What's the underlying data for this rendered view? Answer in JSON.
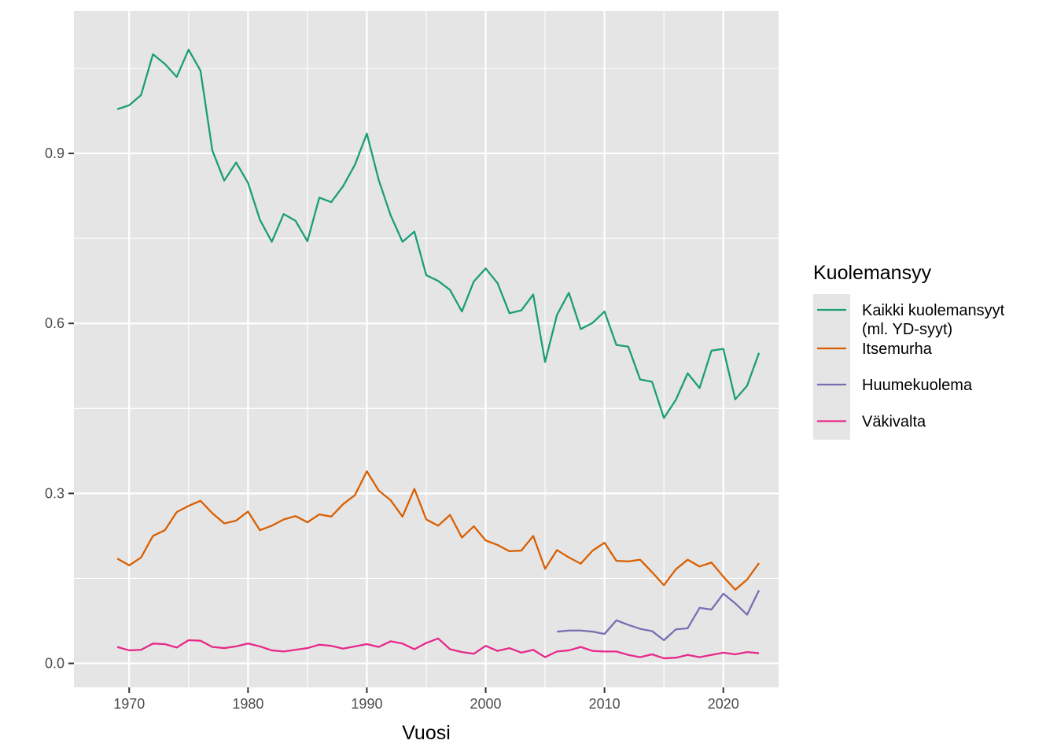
{
  "chart_data": {
    "type": "line",
    "xlabel": "Vuosi",
    "ylabel": "",
    "xlim": [
      1965.35,
      2024.65
    ],
    "ylim": [
      -0.0423,
      1.1513
    ],
    "x_ticks": [
      1970,
      1980,
      1990,
      2000,
      2010,
      2020
    ],
    "y_ticks": [
      0.0,
      0.3,
      0.6,
      0.9
    ],
    "y_tick_labels": [
      "0.0",
      "0.3",
      "0.6",
      "0.9"
    ],
    "grid": true,
    "panel_background": "#e5e5e5",
    "legend": {
      "title": "Kuolemansyy",
      "placement": "right",
      "background": "#e5e5e5"
    },
    "series": [
      {
        "name": "Kaikki kuolemansyyt\n(ml. YD-syyt)",
        "label_lines": [
          "Kaikki kuolemansyyt",
          "(ml. YD-syyt)"
        ],
        "color": "#1b9e77",
        "x": [
          1969,
          1970,
          1971,
          1972,
          1973,
          1974,
          1975,
          1976,
          1977,
          1978,
          1979,
          1980,
          1981,
          1982,
          1983,
          1984,
          1985,
          1986,
          1987,
          1988,
          1989,
          1990,
          1991,
          1992,
          1993,
          1994,
          1995,
          1996,
          1997,
          1998,
          1999,
          2000,
          2001,
          2002,
          2003,
          2004,
          2005,
          2006,
          2007,
          2008,
          2009,
          2010,
          2011,
          2012,
          2013,
          2014,
          2015,
          2016,
          2017,
          2018,
          2019,
          2020,
          2021,
          2022,
          2023
        ],
        "values": [
          0.978,
          0.985,
          1.003,
          1.075,
          1.058,
          1.035,
          1.083,
          1.046,
          0.905,
          0.852,
          0.884,
          0.848,
          0.783,
          0.744,
          0.793,
          0.781,
          0.745,
          0.822,
          0.814,
          0.842,
          0.88,
          0.935,
          0.853,
          0.791,
          0.744,
          0.762,
          0.685,
          0.675,
          0.659,
          0.621,
          0.674,
          0.697,
          0.671,
          0.618,
          0.623,
          0.651,
          0.532,
          0.615,
          0.654,
          0.59,
          0.601,
          0.621,
          0.562,
          0.559,
          0.501,
          0.497,
          0.433,
          0.465,
          0.512,
          0.486,
          0.552,
          0.555,
          0.466,
          0.49,
          0.548
        ]
      },
      {
        "name": "Itsemurha",
        "label_lines": [
          "Itsemurha"
        ],
        "color": "#d95f02",
        "x": [
          1969,
          1970,
          1971,
          1972,
          1973,
          1974,
          1975,
          1976,
          1977,
          1978,
          1979,
          1980,
          1981,
          1982,
          1983,
          1984,
          1985,
          1986,
          1987,
          1988,
          1989,
          1990,
          1991,
          1992,
          1993,
          1994,
          1995,
          1996,
          1997,
          1998,
          1999,
          2000,
          2001,
          2002,
          2003,
          2004,
          2005,
          2006,
          2007,
          2008,
          2009,
          2010,
          2011,
          2012,
          2013,
          2014,
          2015,
          2016,
          2017,
          2018,
          2019,
          2020,
          2021,
          2022,
          2023
        ],
        "values": [
          0.185,
          0.173,
          0.187,
          0.225,
          0.235,
          0.267,
          0.278,
          0.287,
          0.265,
          0.247,
          0.252,
          0.268,
          0.235,
          0.243,
          0.254,
          0.26,
          0.249,
          0.263,
          0.259,
          0.281,
          0.297,
          0.339,
          0.305,
          0.288,
          0.259,
          0.308,
          0.254,
          0.243,
          0.262,
          0.222,
          0.242,
          0.217,
          0.209,
          0.198,
          0.199,
          0.225,
          0.167,
          0.2,
          0.187,
          0.176,
          0.199,
          0.213,
          0.181,
          0.18,
          0.183,
          0.161,
          0.138,
          0.166,
          0.183,
          0.171,
          0.178,
          0.153,
          0.13,
          0.148,
          0.177
        ]
      },
      {
        "name": "Huumekuolema",
        "label_lines": [
          "Huumekuolema"
        ],
        "color": "#7570b3",
        "x": [
          2006,
          2007,
          2008,
          2009,
          2010,
          2011,
          2012,
          2013,
          2014,
          2015,
          2016,
          2017,
          2018,
          2019,
          2020,
          2021,
          2022,
          2023
        ],
        "values": [
          0.056,
          0.058,
          0.058,
          0.056,
          0.052,
          0.076,
          0.068,
          0.061,
          0.057,
          0.041,
          0.06,
          0.062,
          0.098,
          0.095,
          0.123,
          0.106,
          0.086,
          0.129
        ]
      },
      {
        "name": "Väkivalta",
        "label_lines": [
          "Väkivalta"
        ],
        "color": "#e7298a",
        "x": [
          1969,
          1970,
          1971,
          1972,
          1973,
          1974,
          1975,
          1976,
          1977,
          1978,
          1979,
          1980,
          1981,
          1982,
          1983,
          1984,
          1985,
          1986,
          1987,
          1988,
          1989,
          1990,
          1991,
          1992,
          1993,
          1994,
          1995,
          1996,
          1997,
          1998,
          1999,
          2000,
          2001,
          2002,
          2003,
          2004,
          2005,
          2006,
          2007,
          2008,
          2009,
          2010,
          2011,
          2012,
          2013,
          2014,
          2015,
          2016,
          2017,
          2018,
          2019,
          2020,
          2021,
          2022,
          2023
        ],
        "values": [
          0.029,
          0.023,
          0.024,
          0.035,
          0.034,
          0.028,
          0.041,
          0.04,
          0.029,
          0.027,
          0.03,
          0.035,
          0.03,
          0.023,
          0.021,
          0.024,
          0.027,
          0.033,
          0.031,
          0.026,
          0.03,
          0.034,
          0.029,
          0.039,
          0.035,
          0.025,
          0.036,
          0.044,
          0.025,
          0.02,
          0.017,
          0.031,
          0.022,
          0.027,
          0.019,
          0.024,
          0.011,
          0.021,
          0.023,
          0.029,
          0.022,
          0.021,
          0.021,
          0.015,
          0.011,
          0.016,
          0.009,
          0.01,
          0.015,
          0.011,
          0.015,
          0.019,
          0.016,
          0.02,
          0.018
        ]
      }
    ]
  }
}
